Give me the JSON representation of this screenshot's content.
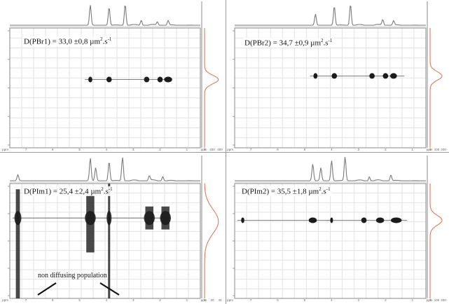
{
  "panels": [
    {
      "id": "PBr1",
      "label_pre": "D(PBr1) = 33,0 ±0,8 µm",
      "label_exp1": "2",
      "label_mid": ".s",
      "label_exp2": "-1",
      "x_axis_unit": "ppm",
      "right_axis_unit": "ppm",
      "x_ticks": [
        "7",
        "6",
        "5",
        "4",
        "3",
        "2",
        "1"
      ],
      "right_ticks": [
        "0",
        "200",
        "400"
      ]
    },
    {
      "id": "PBr2",
      "label_pre": "D(PBr2) = 34,7 ±0,9 µm",
      "label_exp1": "2",
      "label_mid": ".s",
      "label_exp2": "-1",
      "x_axis_unit": "ppm",
      "right_axis_unit": "ppm",
      "x_ticks": [
        "7",
        "6",
        "5",
        "4",
        "3",
        "2",
        "1"
      ],
      "right_ticks": [
        "0",
        "100",
        "200"
      ]
    },
    {
      "id": "PIm1",
      "label_pre": "D(PIm1) = 25,4 ±2,4 µm",
      "label_exp1": "2",
      "label_mid": ".s",
      "label_exp2": "-1",
      "x_axis_unit": "ppm",
      "right_axis_unit": "ppm",
      "x_ticks": [
        "7",
        "6",
        "5",
        "4",
        "3",
        "2",
        "1"
      ],
      "right_ticks": [
        "0",
        "20",
        "40"
      ]
    },
    {
      "id": "PIm2",
      "label_pre": "D(PIm2) = 35,5 ±1,8 µm",
      "label_exp1": "2",
      "label_mid": ".s",
      "label_exp2": "-1",
      "x_axis_unit": "ppm",
      "right_axis_unit": "ppm",
      "x_ticks": [
        "7",
        "6",
        "5",
        "4",
        "3",
        "2",
        "1"
      ],
      "right_ticks": [
        "0",
        "100",
        "200"
      ]
    }
  ],
  "annotation": {
    "text": "non diffusing population"
  },
  "colors": {
    "spectrum": "#7a7a7a",
    "diffusion_projection": "#e07a5f",
    "grid": "#e2e2e2",
    "cross_peak": "#1c1c1c",
    "axis": "#888888"
  },
  "chart_data": [
    {
      "type": "scatter",
      "subtype": "2D DOSY NMR map",
      "panel": "PBr1",
      "title": "D(PBr1) = 33,0 ±0,8 µm2.s-1",
      "xlabel": "ppm",
      "xlim": [
        7.6,
        0.5
      ],
      "spectrum_peaks": [
        {
          "ppm": 4.6,
          "height": 0.9
        },
        {
          "ppm": 3.9,
          "height": 0.8
        },
        {
          "ppm": 3.3,
          "height": 0.95
        },
        {
          "ppm": 2.7,
          "height": 0.25
        },
        {
          "ppm": 2.1,
          "height": 0.15
        },
        {
          "ppm": 1.7,
          "height": 0.2
        }
      ],
      "diffusion_line": {
        "ppm_range": [
          4.8,
          1.6
        ],
        "level": 0.43
      },
      "cross_peaks": [
        {
          "ppm": 4.6,
          "width": 0.15
        },
        {
          "ppm": 3.9,
          "width": 0.2
        },
        {
          "ppm": 2.5,
          "width": 0.2
        },
        {
          "ppm": 2.0,
          "width": 0.2
        },
        {
          "ppm": 1.7,
          "width": 0.3
        }
      ],
      "projection_peak": {
        "level": 0.43,
        "width": 0.05
      }
    },
    {
      "type": "scatter",
      "subtype": "2D DOSY NMR map",
      "panel": "PBr2",
      "title": "D(PBr2) = 34,7 ±0,9 µm2.s-1",
      "xlabel": "ppm",
      "xlim": [
        7.6,
        0.5
      ],
      "spectrum_peaks": [
        {
          "ppm": 4.6,
          "height": 0.5
        },
        {
          "ppm": 3.9,
          "height": 0.85
        },
        {
          "ppm": 3.3,
          "height": 0.95
        },
        {
          "ppm": 2.1,
          "height": 0.25
        },
        {
          "ppm": 1.7,
          "height": 0.2
        }
      ],
      "diffusion_line": {
        "ppm_range": [
          4.8,
          1.3
        ],
        "level": 0.4
      },
      "cross_peaks": [
        {
          "ppm": 4.6,
          "width": 0.15
        },
        {
          "ppm": 3.9,
          "width": 0.2
        },
        {
          "ppm": 2.5,
          "width": 0.2
        },
        {
          "ppm": 2.0,
          "width": 0.2
        },
        {
          "ppm": 1.7,
          "width": 0.25
        }
      ],
      "projection_peak": {
        "level": 0.4,
        "width": 0.05
      }
    },
    {
      "type": "scatter",
      "subtype": "2D DOSY NMR map",
      "panel": "PIm1",
      "title": "D(PIm1) = 25,4 ±2,4 µm2.s-1",
      "xlabel": "ppm",
      "xlim": [
        7.6,
        0.5
      ],
      "spectrum_peaks": [
        {
          "ppm": 7.3,
          "height": 0.25
        },
        {
          "ppm": 4.6,
          "height": 0.95
        },
        {
          "ppm": 4.4,
          "height": 0.55
        },
        {
          "ppm": 3.9,
          "height": 0.8
        },
        {
          "ppm": 3.4,
          "height": 1.0
        },
        {
          "ppm": 2.4,
          "height": 0.2
        },
        {
          "ppm": 1.9,
          "height": 0.2
        }
      ],
      "diffusion_line": {
        "ppm_range": [
          7.5,
          1.6
        ],
        "level": 0.3
      },
      "cross_peaks": [
        {
          "ppm": 7.3,
          "width": 0.15,
          "extent": [
            0.05,
            1.0
          ]
        },
        {
          "ppm": 4.6,
          "width": 0.3,
          "extent": [
            0.1,
            0.6
          ]
        },
        {
          "ppm": 3.9,
          "width": 0.08,
          "extent": [
            0.0,
            1.0
          ]
        },
        {
          "ppm": 2.4,
          "width": 0.3,
          "extent": [
            0.2,
            0.4
          ]
        },
        {
          "ppm": 1.8,
          "width": 0.3,
          "extent": [
            0.2,
            0.4
          ]
        }
      ],
      "projection_peak": {
        "level": 0.33,
        "width": 0.15
      }
    },
    {
      "type": "scatter",
      "subtype": "2D DOSY NMR map",
      "panel": "PIm2",
      "title": "D(PIm2) = 35,5 ±1,8 µm2.s-1",
      "xlabel": "ppm",
      "xlim": [
        7.6,
        0.5
      ],
      "spectrum_peaks": [
        {
          "ppm": 4.7,
          "height": 0.7
        },
        {
          "ppm": 4.4,
          "height": 0.55
        },
        {
          "ppm": 4.0,
          "height": 0.85
        },
        {
          "ppm": 3.5,
          "height": 1.0
        },
        {
          "ppm": 2.6,
          "height": 0.2
        },
        {
          "ppm": 1.8,
          "height": 0.25
        }
      ],
      "diffusion_line": {
        "ppm_range": [
          7.5,
          1.2
        ],
        "level": 0.32
      },
      "cross_peaks": [
        {
          "ppm": 7.3,
          "width": 0.12
        },
        {
          "ppm": 4.7,
          "width": 0.3
        },
        {
          "ppm": 4.0,
          "width": 0.1
        },
        {
          "ppm": 2.8,
          "width": 0.2
        },
        {
          "ppm": 2.2,
          "width": 0.3
        },
        {
          "ppm": 1.6,
          "width": 0.4
        }
      ],
      "projection_peak": {
        "level": 0.32,
        "width": 0.06
      }
    }
  ]
}
